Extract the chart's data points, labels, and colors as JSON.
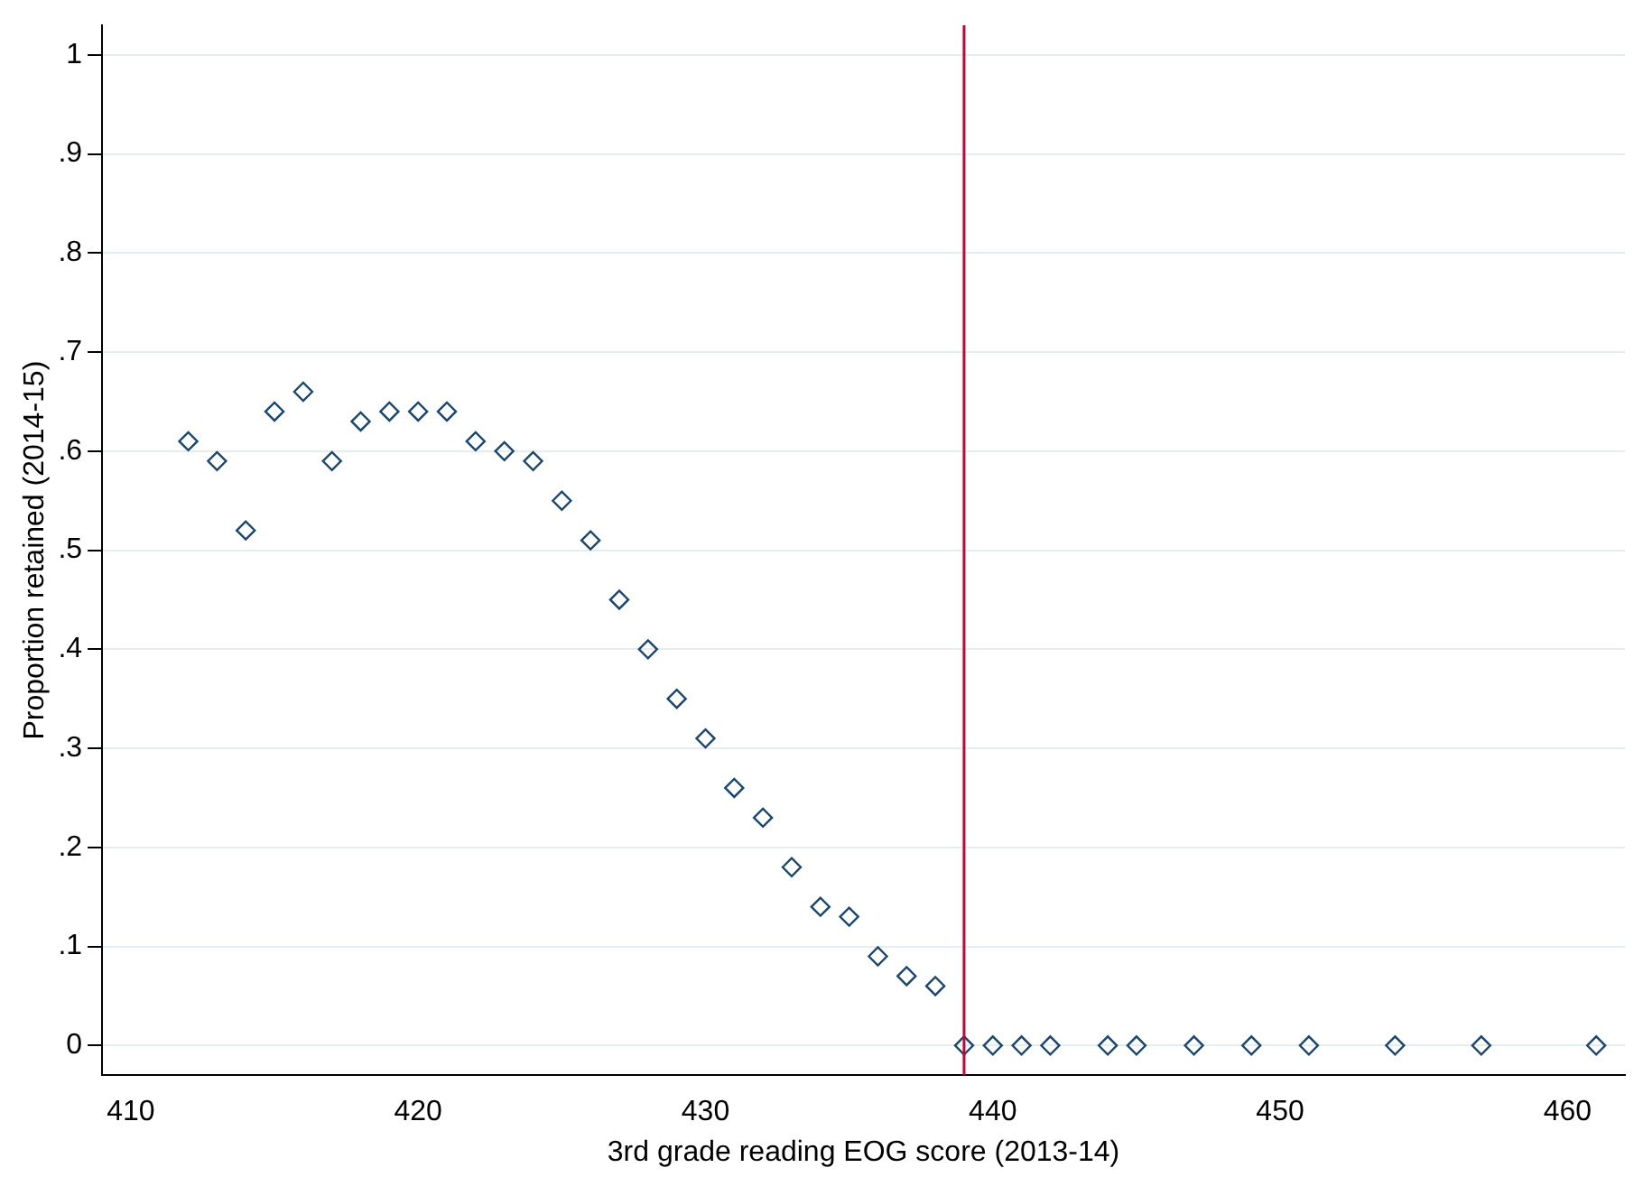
{
  "chart_data": {
    "type": "scatter",
    "xlabel": "3rd grade reading EOG score (2013-14)",
    "ylabel": "Proportion retained (2014-15)",
    "x": [
      412,
      413,
      414,
      415,
      416,
      417,
      418,
      419,
      420,
      421,
      422,
      423,
      424,
      425,
      426,
      427,
      428,
      429,
      430,
      431,
      432,
      433,
      434,
      435,
      436,
      437,
      438,
      439,
      440,
      441,
      442,
      444,
      445,
      447,
      449,
      451,
      454,
      457,
      461
    ],
    "series": [
      {
        "color": "#1a476f",
        "values": [
          0.61,
          0.59,
          0.52,
          0.64,
          0.66,
          0.59,
          0.63,
          0.64,
          0.64,
          0.64,
          0.61,
          0.6,
          0.59,
          0.55,
          0.51,
          0.45,
          0.4,
          0.35,
          0.31,
          0.26,
          0.23,
          0.18,
          0.14,
          0.13,
          0.09,
          0.07,
          0.06,
          0,
          0,
          0,
          0,
          0,
          0,
          0,
          0,
          0,
          0,
          0,
          0
        ]
      }
    ],
    "marker": "diamond",
    "grid": "y",
    "legend": false,
    "xlim": [
      409,
      462
    ],
    "xticks": [
      410,
      420,
      430,
      440,
      450,
      460
    ],
    "ylim": [
      -0.03,
      1.03
    ],
    "yticks": [
      0,
      {
        "value": 0.1,
        "label": ".1"
      },
      {
        "value": 0.2,
        "label": ".2"
      },
      {
        "value": 0.3,
        "label": ".3"
      },
      {
        "value": 0.4,
        "label": ".4"
      },
      {
        "value": 0.5,
        "label": ".5"
      },
      {
        "value": 0.6,
        "label": ".6"
      },
      {
        "value": 0.7,
        "label": ".7"
      },
      {
        "value": 0.8,
        "label": ".8"
      },
      {
        "value": 0.9,
        "label": ".9"
      },
      1
    ],
    "ref_lines": [
      {
        "axis": "x",
        "value": 439,
        "color": "#c10534"
      }
    ]
  }
}
